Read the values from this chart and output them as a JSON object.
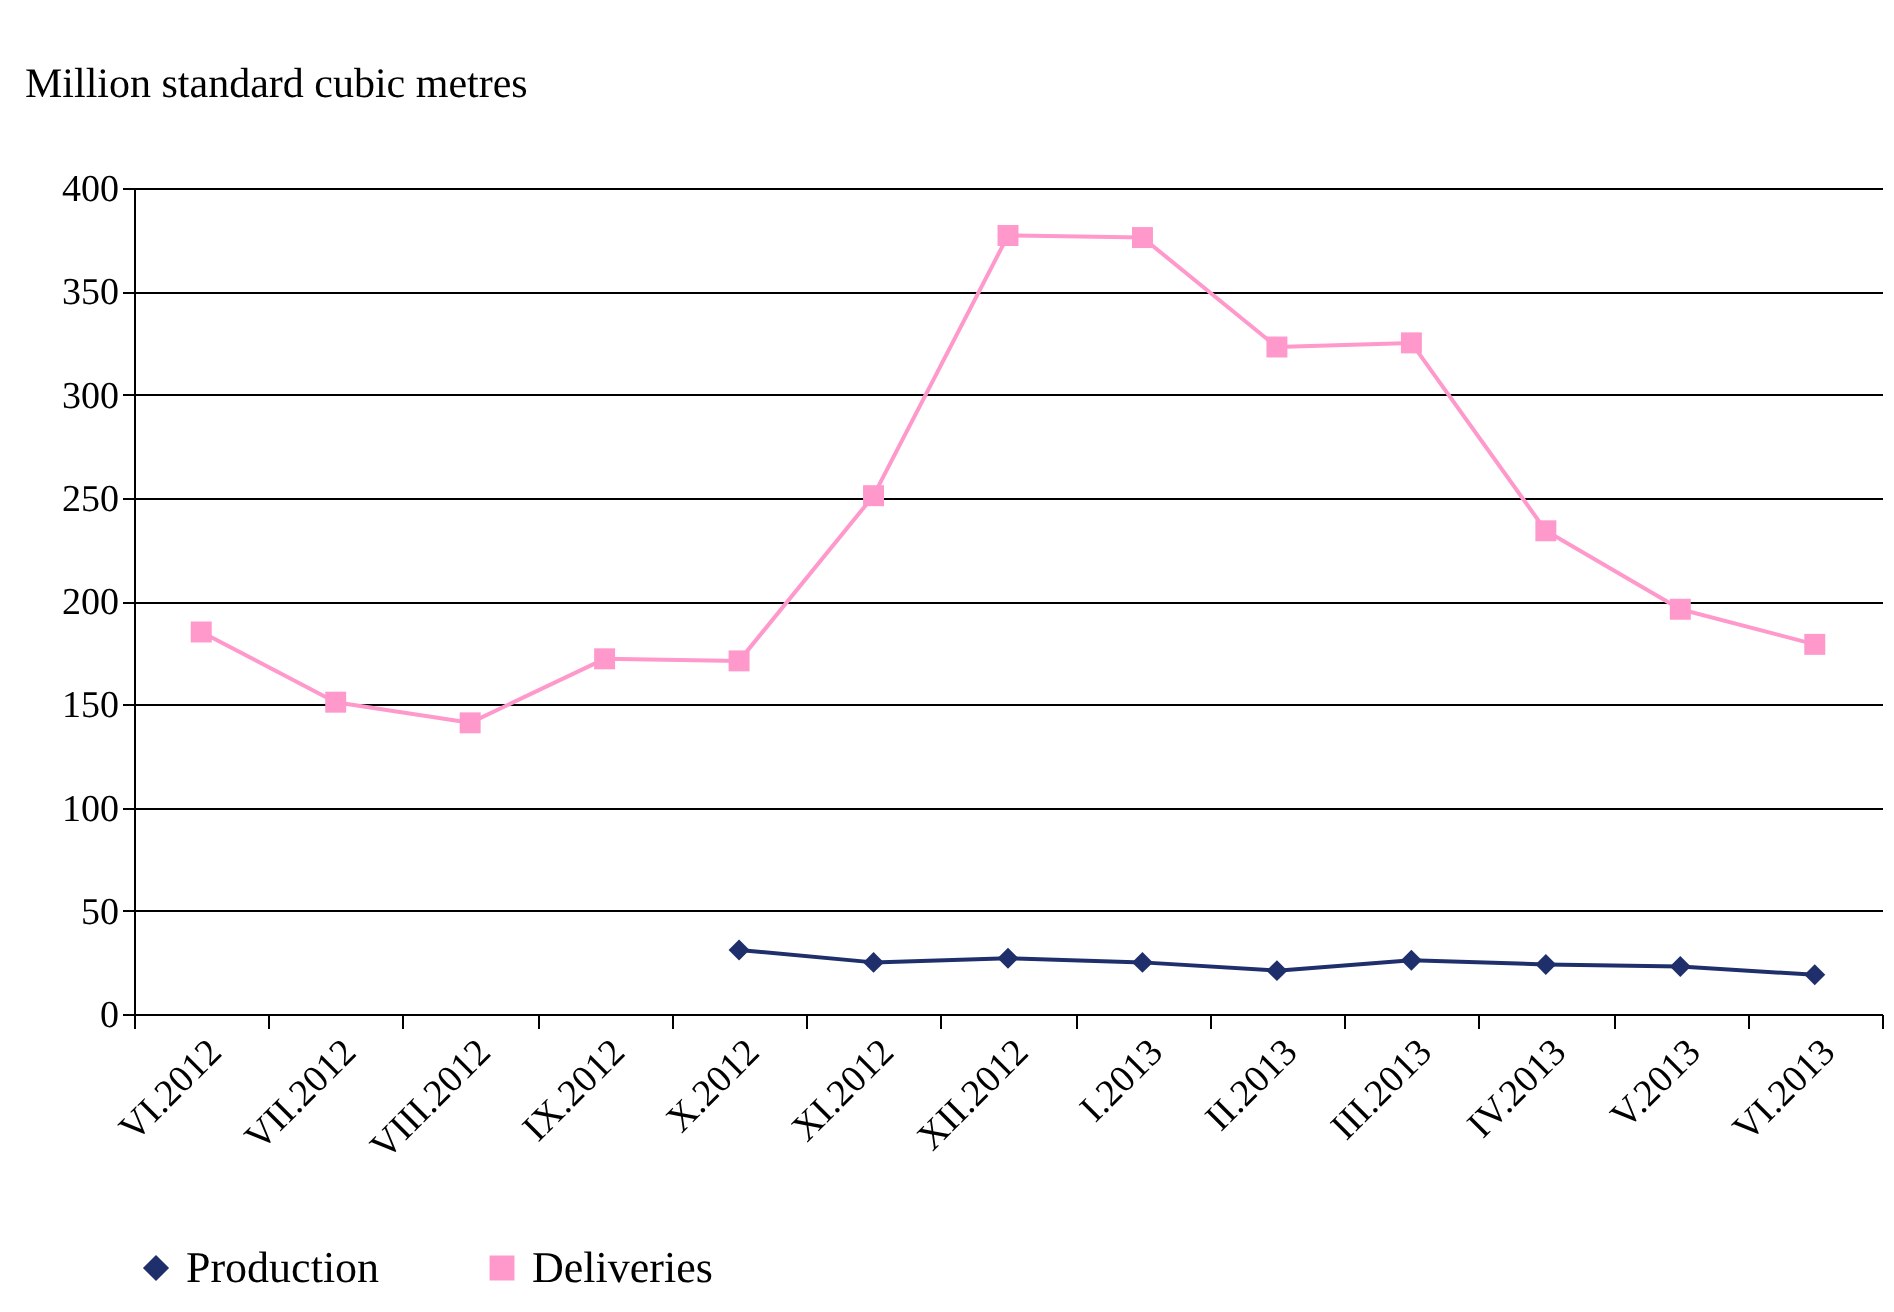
{
  "chart_data": {
    "type": "line",
    "ylabel": "Million standard cubic metres",
    "categories": [
      "VI.2012",
      "VII.2012",
      "VIII.2012",
      "IX.2012",
      "X.2012",
      "XI.2012",
      "XII.2012",
      "I.2013",
      "II.2013",
      "III.2013",
      "IV.2013",
      "V.2013",
      "VI.2013"
    ],
    "series": [
      {
        "name": "Production",
        "color": "#1f2f6b",
        "marker": "diamond",
        "values": [
          null,
          null,
          null,
          null,
          31,
          25,
          27,
          25,
          21,
          26,
          24,
          23,
          19
        ]
      },
      {
        "name": "Deliveries",
        "color": "#ff99cc",
        "marker": "square",
        "values": [
          185,
          151,
          141,
          172,
          171,
          251,
          377,
          376,
          323,
          325,
          234,
          196,
          179
        ]
      }
    ],
    "ylim": [
      0,
      400
    ],
    "yticks": [
      0,
      50,
      100,
      150,
      200,
      250,
      300,
      350,
      400
    ],
    "grid": "y",
    "legend": "bottom",
    "line_style": "solid"
  }
}
